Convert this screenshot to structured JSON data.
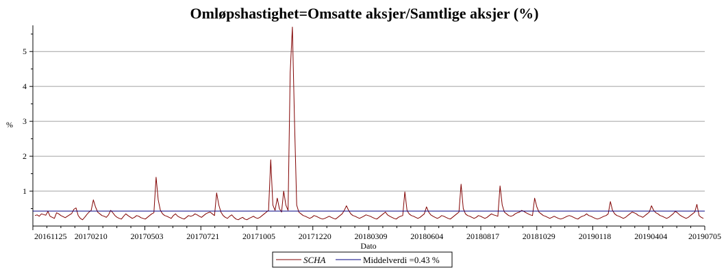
{
  "chart_data": {
    "type": "line",
    "title": "Omløpshastighet=Omsatte aksjer/Samtlige aksjer (%)",
    "xlabel": "Dato",
    "ylabel": "%",
    "ylim": [
      0,
      5.75
    ],
    "yticks": [
      1,
      2,
      3,
      4,
      5
    ],
    "xtick_labels": [
      "20161125",
      "20170210",
      "20170503",
      "20170721",
      "20171005",
      "20171220",
      "20180309",
      "20180604",
      "20180817",
      "20181029",
      "20190118",
      "20190404",
      "20190705"
    ],
    "grid": "horizontal",
    "legend_position": "bottom-center",
    "colors": {
      "series": "#800000",
      "mean": "#000080",
      "grid": "#a0a0a0"
    },
    "series": [
      {
        "name": "SCHA",
        "x_range": [
          "20161125",
          "20190705"
        ],
        "values": [
          0.3,
          0.32,
          0.28,
          0.35,
          0.33,
          0.31,
          0.42,
          0.28,
          0.25,
          0.22,
          0.38,
          0.35,
          0.3,
          0.27,
          0.24,
          0.28,
          0.32,
          0.36,
          0.48,
          0.52,
          0.3,
          0.22,
          0.18,
          0.25,
          0.33,
          0.4,
          0.45,
          0.75,
          0.55,
          0.4,
          0.35,
          0.3,
          0.28,
          0.25,
          0.32,
          0.45,
          0.38,
          0.3,
          0.25,
          0.22,
          0.2,
          0.28,
          0.35,
          0.3,
          0.26,
          0.22,
          0.25,
          0.3,
          0.28,
          0.24,
          0.22,
          0.2,
          0.25,
          0.3,
          0.35,
          0.38,
          1.4,
          0.75,
          0.45,
          0.35,
          0.3,
          0.28,
          0.25,
          0.22,
          0.3,
          0.35,
          0.28,
          0.25,
          0.22,
          0.2,
          0.25,
          0.3,
          0.28,
          0.3,
          0.35,
          0.32,
          0.28,
          0.25,
          0.3,
          0.35,
          0.38,
          0.4,
          0.35,
          0.3,
          0.95,
          0.6,
          0.4,
          0.3,
          0.25,
          0.22,
          0.28,
          0.32,
          0.25,
          0.2,
          0.18,
          0.22,
          0.25,
          0.2,
          0.18,
          0.22,
          0.25,
          0.28,
          0.24,
          0.22,
          0.25,
          0.3,
          0.35,
          0.4,
          0.45,
          1.9,
          0.6,
          0.45,
          0.8,
          0.5,
          0.4,
          1.0,
          0.6,
          0.45,
          4.4,
          5.7,
          3.0,
          0.6,
          0.4,
          0.35,
          0.3,
          0.28,
          0.25,
          0.22,
          0.25,
          0.3,
          0.28,
          0.25,
          0.22,
          0.2,
          0.22,
          0.25,
          0.28,
          0.25,
          0.22,
          0.2,
          0.25,
          0.3,
          0.35,
          0.45,
          0.58,
          0.45,
          0.35,
          0.3,
          0.28,
          0.25,
          0.22,
          0.25,
          0.28,
          0.32,
          0.3,
          0.28,
          0.25,
          0.22,
          0.2,
          0.25,
          0.3,
          0.35,
          0.4,
          0.32,
          0.28,
          0.25,
          0.22,
          0.2,
          0.25,
          0.28,
          0.3,
          0.98,
          0.45,
          0.35,
          0.3,
          0.28,
          0.25,
          0.22,
          0.25,
          0.3,
          0.35,
          0.55,
          0.4,
          0.32,
          0.28,
          0.25,
          0.22,
          0.25,
          0.3,
          0.28,
          0.25,
          0.22,
          0.2,
          0.25,
          0.3,
          0.35,
          0.4,
          1.2,
          0.5,
          0.35,
          0.3,
          0.28,
          0.25,
          0.22,
          0.25,
          0.3,
          0.28,
          0.25,
          0.22,
          0.25,
          0.3,
          0.35,
          0.32,
          0.3,
          0.28,
          1.15,
          0.6,
          0.4,
          0.35,
          0.3,
          0.28,
          0.3,
          0.35,
          0.38,
          0.4,
          0.45,
          0.42,
          0.38,
          0.35,
          0.32,
          0.3,
          0.8,
          0.55,
          0.4,
          0.35,
          0.3,
          0.28,
          0.25,
          0.22,
          0.25,
          0.28,
          0.25,
          0.22,
          0.2,
          0.22,
          0.25,
          0.28,
          0.3,
          0.28,
          0.25,
          0.22,
          0.2,
          0.25,
          0.28,
          0.3,
          0.35,
          0.3,
          0.28,
          0.25,
          0.22,
          0.2,
          0.22,
          0.25,
          0.28,
          0.3,
          0.35,
          0.7,
          0.45,
          0.35,
          0.3,
          0.28,
          0.25,
          0.22,
          0.25,
          0.3,
          0.35,
          0.4,
          0.38,
          0.35,
          0.3,
          0.28,
          0.25,
          0.3,
          0.35,
          0.4,
          0.58,
          0.45,
          0.38,
          0.35,
          0.3,
          0.28,
          0.25,
          0.22,
          0.25,
          0.3,
          0.35,
          0.42,
          0.38,
          0.32,
          0.28,
          0.25,
          0.22,
          0.25,
          0.3,
          0.35,
          0.4,
          0.62,
          0.3,
          0.25,
          0.22
        ]
      },
      {
        "name": "Middelverdi =0.43 %",
        "constant": 0.43
      }
    ]
  }
}
